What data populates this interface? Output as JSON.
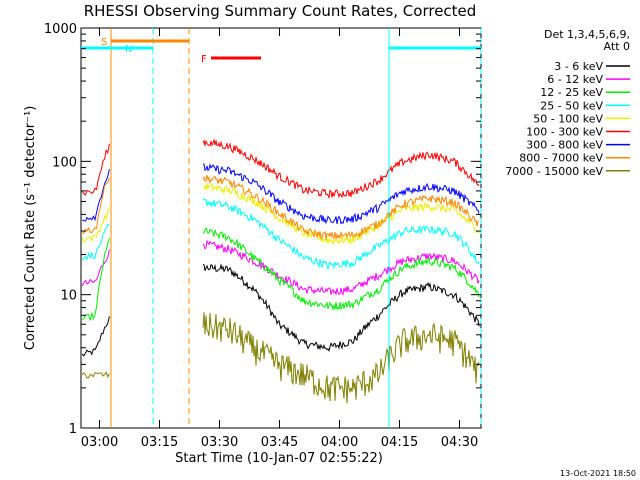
{
  "chart_data": {
    "type": "line",
    "title": "RHESSI Observing Summary Count Rates, Corrected",
    "xlabel": "Start Time (10-Jan-07 02:55:22)",
    "ylabel": "Corrected Count Rate (s⁻¹ detector⁻¹)",
    "yscale": "log",
    "ylim": [
      1,
      1000
    ],
    "xlim_min_since_start": [
      0,
      100
    ],
    "x_ticks": [
      "03:00",
      "03:15",
      "03:30",
      "03:45",
      "04:00",
      "04:15",
      "04:30"
    ],
    "y_ticks": [
      "1",
      "10",
      "100",
      "1000"
    ],
    "legend_header": [
      "Det 1,3,4,5,6,9,",
      "Att 0"
    ],
    "legend_position": "right",
    "series": [
      {
        "name": "3 - 6 keV",
        "color": "#000000",
        "pre": [
          3.5,
          3.8,
          7
        ],
        "post": [
          16,
          15.5,
          11,
          6,
          4.3,
          4,
          4.5,
          7,
          10.5,
          11.5,
          10,
          6
        ]
      },
      {
        "name": "6 - 12 keV",
        "color": "#ff00ff",
        "pre": [
          12,
          12.5,
          22
        ],
        "post": [
          24,
          22,
          18,
          14,
          11,
          10.5,
          11,
          14,
          18,
          19.5,
          18,
          12.5
        ]
      },
      {
        "name": "12 - 25 keV",
        "color": "#00ee00",
        "pre": [
          6.5,
          7,
          28
        ],
        "post": [
          30,
          27,
          19,
          13,
          9,
          8.2,
          8.5,
          11,
          16,
          18,
          16,
          10
        ]
      },
      {
        "name": "25 - 50 keV",
        "color": "#00ffff",
        "pre": [
          19,
          20,
          35
        ],
        "post": [
          50,
          46,
          37,
          26,
          19,
          16.5,
          17.5,
          23,
          30,
          31,
          29,
          17
        ]
      },
      {
        "name": "50 - 100 keV",
        "color": "#eeee00",
        "pre": [
          26,
          27,
          45
        ],
        "post": [
          65,
          61,
          51,
          38,
          29,
          25.5,
          26,
          33,
          44,
          46,
          43,
          30
        ]
      },
      {
        "name": "100 - 300 keV",
        "color": "#ff0000",
        "pre": [
          58,
          60,
          140
        ],
        "post": [
          140,
          130,
          105,
          78,
          61,
          57,
          58,
          72,
          100,
          113,
          100,
          65
        ]
      },
      {
        "name": "300 - 800 keV",
        "color": "#0000ff",
        "pre": [
          37,
          39,
          90
        ],
        "post": [
          90,
          85,
          70,
          50,
          39,
          36,
          37,
          45,
          60,
          65,
          60,
          42
        ]
      },
      {
        "name": "800 - 7000 keV",
        "color": "#ff8800",
        "pre": [
          30,
          31,
          85
        ],
        "post": [
          75,
          70,
          56,
          41,
          30,
          27.5,
          28,
          34,
          48,
          53,
          49,
          33
        ]
      },
      {
        "name": "7000 - 15000 keV",
        "color": "#808000",
        "pre": [
          2.5,
          2.5,
          2.5
        ],
        "post": [
          6,
          5.5,
          4,
          3,
          2.5,
          2,
          2,
          2.5,
          4.5,
          5,
          4.5,
          2.5
        ]
      }
    ],
    "flag_bars": [
      {
        "label": "S",
        "color": "#ff8800",
        "x_start": 7.5,
        "x_end": 27
      },
      {
        "label": "N",
        "color": "#00ffff",
        "x_start": 0,
        "x_end": 18
      },
      {
        "label": "F",
        "color": "#ff0000",
        "x_start": 32.5,
        "x_end": 45
      },
      {
        "label": "",
        "color": "#00ffff",
        "x_start": 77,
        "x_end": 100
      }
    ],
    "marker_lines": [
      {
        "color": "#ff8800",
        "style": "solid",
        "x": 7.5
      },
      {
        "color": "#00ffff",
        "style": "dashed",
        "x": 18
      },
      {
        "color": "#ff8800",
        "style": "dashed",
        "x": 27
      },
      {
        "color": "#00ffff",
        "style": "solid",
        "x": 77
      },
      {
        "color": "#00ffff",
        "style": "dashed",
        "x": 100
      }
    ]
  },
  "footer": {
    "date": "13-Oct-2021 18:50"
  }
}
